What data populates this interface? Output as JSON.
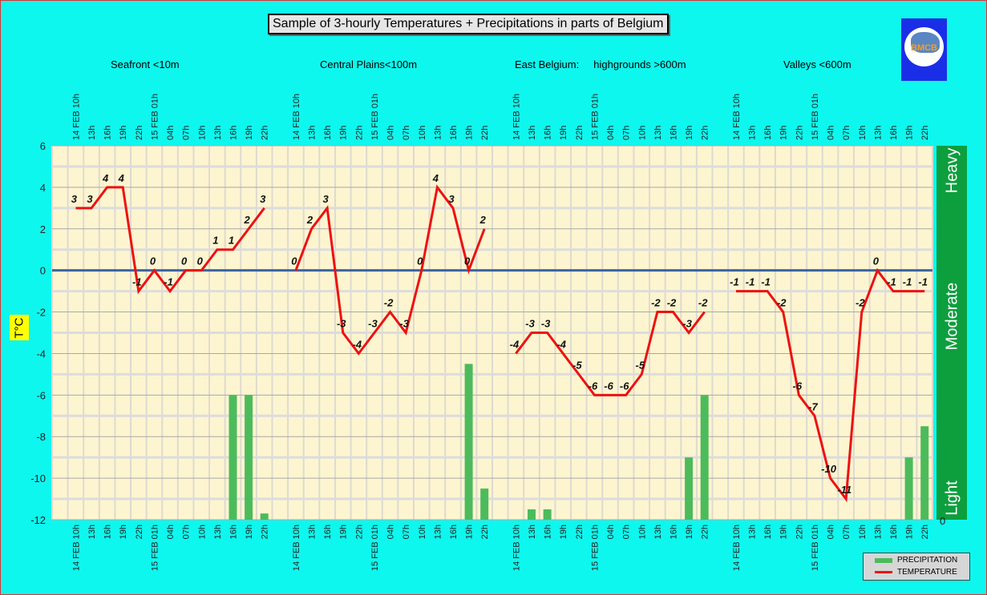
{
  "title": "Sample of 3-hourly Temperatures + Precipitations in parts of Belgium",
  "logo_text": "BMCB",
  "chart_data": {
    "type": "line",
    "title": "Sample of 3-hourly Temperatures + Precipitations in parts of Belgium",
    "ylabel": "T°C",
    "ylim": [
      -12,
      6
    ],
    "yticks": [
      "6",
      "4",
      "2",
      "0",
      "-2",
      "-4",
      "-6",
      "-8",
      "-10",
      "-12"
    ],
    "y2label_bottom": "0",
    "y2_bands": [
      "Heavy",
      "Moderate",
      "Light"
    ],
    "y2lim": [
      0,
      18
    ],
    "time_labels": [
      "14 FEB 10h",
      "13h",
      "16h",
      "19h",
      "22h",
      "15 FEB 01h",
      "04h",
      "07h",
      "10h",
      "13h",
      "16h",
      "19h",
      "22h"
    ],
    "groups": [
      {
        "name": "Seafront <10m",
        "temperature": [
          3,
          3,
          4,
          4,
          -1,
          0,
          -1,
          0,
          0,
          1,
          1,
          2,
          3
        ],
        "precipitation": [
          0,
          0,
          0,
          0,
          0,
          0,
          0,
          0,
          0,
          0,
          6,
          6,
          0.3
        ]
      },
      {
        "name": "Central Plains<100m",
        "temperature": [
          0,
          2,
          3,
          -3,
          -4,
          -3,
          -2,
          -3,
          0,
          4,
          3,
          0,
          2
        ],
        "precipitation": [
          0,
          0,
          0,
          0,
          0,
          0,
          0,
          0,
          0,
          0,
          0,
          7.5,
          1.5
        ]
      },
      {
        "name": "East Belgium:     highgrounds >600m",
        "temperature": [
          -4,
          -3,
          -3,
          -4,
          -5,
          -6,
          -6,
          -6,
          -5,
          -2,
          -2,
          -3,
          -2
        ],
        "precipitation": [
          0,
          0.5,
          0.5,
          0,
          0,
          0,
          0,
          0,
          0,
          0,
          0,
          3,
          6
        ]
      },
      {
        "name": "Valleys <600m",
        "temperature": [
          -1,
          -1,
          -1,
          -2,
          -6,
          -7,
          -10,
          -11,
          -2,
          0,
          -1,
          -1,
          -1
        ],
        "precipitation": [
          0,
          0,
          0,
          0,
          0,
          0,
          0,
          0,
          0,
          0,
          0,
          3,
          4.5
        ]
      }
    ],
    "legend": [
      "PRECIPITATION",
      "TEMPERATURE"
    ],
    "legend_position": "bottom-right",
    "grid": true,
    "colors": {
      "temperature": "#ee1111",
      "precipitation": "#4cbb5c",
      "plot_bg": "#fdf5d0",
      "band": "#0d9e3e",
      "zero_line": "#3c64a0"
    }
  }
}
